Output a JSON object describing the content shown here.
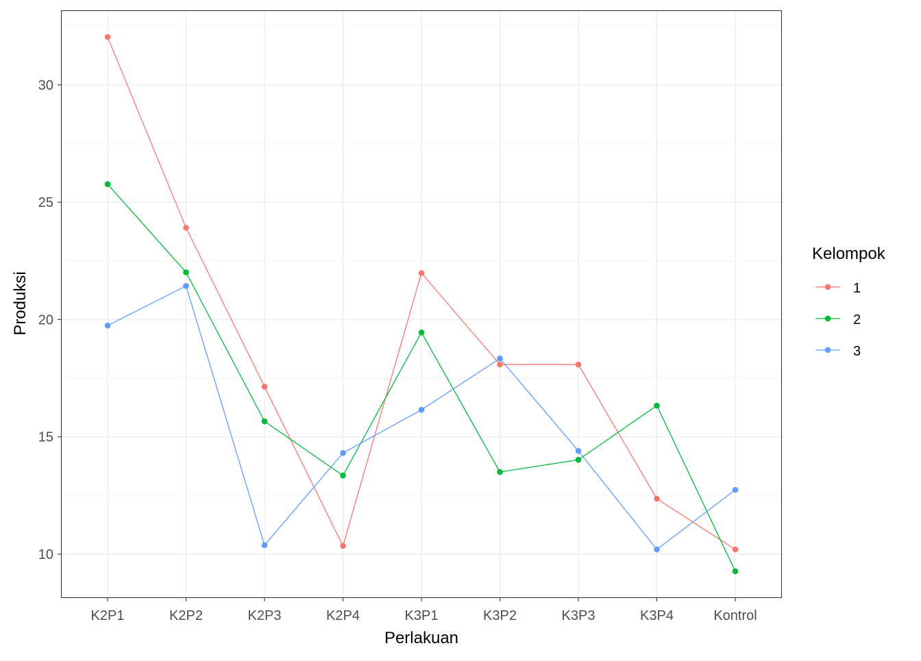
{
  "chart_data": {
    "type": "line",
    "title": "",
    "xlabel": "Perlakuan",
    "ylabel": "Produksi",
    "categories": [
      "K2P1",
      "K2P2",
      "K2P3",
      "K2P4",
      "K3P1",
      "K3P2",
      "K3P3",
      "K3P4",
      "Kontrol"
    ],
    "ylim": [
      8.16,
      33.15
    ],
    "yticks": [
      10,
      15,
      20,
      25,
      30
    ],
    "grid": true,
    "legend": {
      "title": "Kelompok",
      "placement": "right"
    },
    "series": [
      {
        "name": "1",
        "color": "#F8766D",
        "values": [
          32.04,
          23.91,
          17.14,
          10.35,
          21.98,
          18.08,
          18.08,
          12.36,
          10.2
        ]
      },
      {
        "name": "2",
        "color": "#00BA38",
        "values": [
          25.77,
          22.01,
          15.66,
          13.35,
          19.45,
          13.5,
          14.02,
          16.33,
          9.27
        ]
      },
      {
        "name": "3",
        "color": "#619CFF",
        "values": [
          19.74,
          21.43,
          10.38,
          14.31,
          16.15,
          18.34,
          14.4,
          10.2,
          12.74
        ]
      }
    ]
  }
}
